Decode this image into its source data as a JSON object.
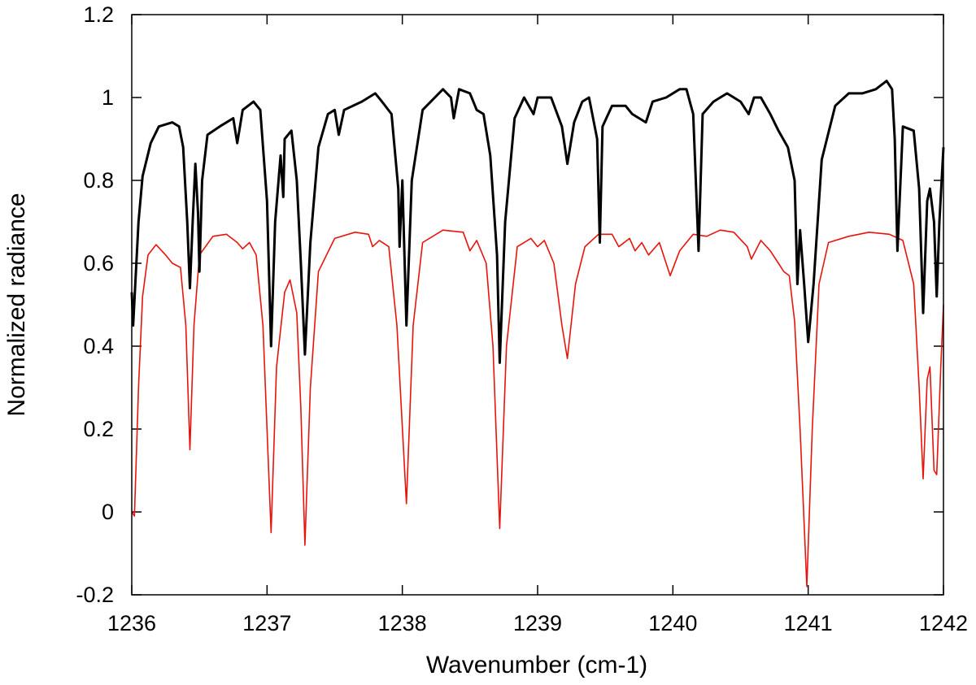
{
  "chart_data": {
    "type": "line",
    "xlabel": "Wavenumber (cm-1)",
    "ylabel": "Normalized radiance",
    "xlim": [
      1236,
      1242
    ],
    "xticks": [
      1236,
      1237,
      1238,
      1239,
      1240,
      1241,
      1242
    ],
    "ylim": [
      -0.2,
      1.2
    ],
    "yticks": [
      -0.2,
      0,
      0.2,
      0.4,
      0.6,
      0.8,
      1,
      1.2
    ],
    "series": [
      {
        "color": "#000000",
        "x": [
          1236.0,
          1236.01,
          1236.05,
          1236.08,
          1236.14,
          1236.2,
          1236.3,
          1236.35,
          1236.38,
          1236.41,
          1236.43,
          1236.45,
          1236.47,
          1236.49,
          1236.5,
          1236.52,
          1236.56,
          1236.65,
          1236.75,
          1236.78,
          1236.82,
          1236.9,
          1236.95,
          1237.0,
          1237.03,
          1237.06,
          1237.1,
          1237.12,
          1237.13,
          1237.18,
          1237.22,
          1237.25,
          1237.28,
          1237.32,
          1237.38,
          1237.45,
          1237.5,
          1237.53,
          1237.57,
          1237.7,
          1237.8,
          1237.85,
          1237.92,
          1237.97,
          1237.98,
          1238.0,
          1238.03,
          1238.07,
          1238.15,
          1238.3,
          1238.36,
          1238.38,
          1238.42,
          1238.5,
          1238.55,
          1238.6,
          1238.65,
          1238.7,
          1238.72,
          1238.76,
          1238.83,
          1238.9,
          1238.97,
          1239.0,
          1239.1,
          1239.18,
          1239.22,
          1239.27,
          1239.33,
          1239.38,
          1239.44,
          1239.46,
          1239.48,
          1239.55,
          1239.65,
          1239.7,
          1239.8,
          1239.85,
          1239.95,
          1240.05,
          1240.1,
          1240.15,
          1240.19,
          1240.22,
          1240.3,
          1240.4,
          1240.5,
          1240.56,
          1240.6,
          1240.65,
          1240.72,
          1240.78,
          1240.85,
          1240.9,
          1240.92,
          1240.94,
          1240.97,
          1241.0,
          1241.04,
          1241.1,
          1241.2,
          1241.3,
          1241.4,
          1241.5,
          1241.58,
          1241.62,
          1241.64,
          1241.66,
          1241.7,
          1241.78,
          1241.82,
          1241.85,
          1241.88,
          1241.9,
          1241.93,
          1241.95,
          1241.97,
          1242.0
        ],
        "values": [
          0.53,
          0.45,
          0.7,
          0.81,
          0.89,
          0.93,
          0.94,
          0.93,
          0.88,
          0.7,
          0.54,
          0.7,
          0.84,
          0.72,
          0.58,
          0.8,
          0.91,
          0.93,
          0.95,
          0.89,
          0.97,
          0.99,
          0.97,
          0.75,
          0.4,
          0.7,
          0.86,
          0.76,
          0.9,
          0.92,
          0.8,
          0.6,
          0.38,
          0.65,
          0.88,
          0.96,
          0.97,
          0.91,
          0.97,
          0.99,
          1.01,
          0.99,
          0.96,
          0.78,
          0.64,
          0.8,
          0.45,
          0.8,
          0.97,
          1.02,
          1.0,
          0.95,
          1.02,
          1.01,
          0.97,
          0.96,
          0.86,
          0.62,
          0.36,
          0.7,
          0.95,
          1.0,
          0.96,
          1.0,
          1.0,
          0.93,
          0.84,
          0.94,
          0.99,
          1.0,
          0.9,
          0.65,
          0.93,
          0.98,
          0.98,
          0.96,
          0.94,
          0.99,
          1.0,
          1.02,
          1.02,
          0.96,
          0.63,
          0.96,
          0.99,
          1.01,
          0.99,
          0.96,
          1.0,
          1.0,
          0.96,
          0.92,
          0.88,
          0.8,
          0.55,
          0.68,
          0.55,
          0.41,
          0.55,
          0.85,
          0.98,
          1.01,
          1.01,
          1.02,
          1.04,
          1.02,
          0.9,
          0.63,
          0.93,
          0.92,
          0.78,
          0.48,
          0.75,
          0.78,
          0.7,
          0.52,
          0.7,
          0.88
        ]
      },
      {
        "color": "#e8140c",
        "x": [
          1236.0,
          1236.02,
          1236.05,
          1236.08,
          1236.12,
          1236.18,
          1236.25,
          1236.3,
          1236.36,
          1236.4,
          1236.43,
          1236.46,
          1236.5,
          1236.6,
          1236.7,
          1236.78,
          1236.82,
          1236.87,
          1236.92,
          1236.97,
          1237.03,
          1237.07,
          1237.13,
          1237.17,
          1237.22,
          1237.25,
          1237.28,
          1237.32,
          1237.38,
          1237.5,
          1237.65,
          1237.75,
          1237.78,
          1237.83,
          1237.9,
          1237.96,
          1238.03,
          1238.08,
          1238.15,
          1238.3,
          1238.45,
          1238.5,
          1238.55,
          1238.62,
          1238.67,
          1238.72,
          1238.77,
          1238.85,
          1238.95,
          1239.0,
          1239.05,
          1239.12,
          1239.18,
          1239.22,
          1239.28,
          1239.35,
          1239.45,
          1239.55,
          1239.6,
          1239.68,
          1239.72,
          1239.77,
          1239.82,
          1239.9,
          1239.98,
          1240.05,
          1240.15,
          1240.25,
          1240.35,
          1240.45,
          1240.55,
          1240.58,
          1240.65,
          1240.72,
          1240.78,
          1240.82,
          1240.86,
          1240.9,
          1240.94,
          1240.99,
          1241.03,
          1241.08,
          1241.15,
          1241.3,
          1241.45,
          1241.6,
          1241.7,
          1241.78,
          1241.82,
          1241.85,
          1241.88,
          1241.9,
          1241.93,
          1241.95,
          1241.98,
          1242.0
        ],
        "values": [
          0.0,
          -0.01,
          0.3,
          0.52,
          0.62,
          0.645,
          0.62,
          0.6,
          0.59,
          0.45,
          0.15,
          0.45,
          0.62,
          0.665,
          0.67,
          0.65,
          0.635,
          0.65,
          0.62,
          0.45,
          -0.05,
          0.35,
          0.53,
          0.56,
          0.48,
          0.25,
          -0.08,
          0.3,
          0.58,
          0.66,
          0.675,
          0.67,
          0.64,
          0.655,
          0.64,
          0.45,
          0.02,
          0.45,
          0.65,
          0.68,
          0.675,
          0.63,
          0.655,
          0.6,
          0.4,
          -0.04,
          0.4,
          0.64,
          0.66,
          0.64,
          0.655,
          0.6,
          0.45,
          0.37,
          0.55,
          0.64,
          0.67,
          0.67,
          0.64,
          0.66,
          0.63,
          0.65,
          0.62,
          0.65,
          0.57,
          0.63,
          0.67,
          0.665,
          0.68,
          0.675,
          0.64,
          0.61,
          0.655,
          0.63,
          0.6,
          0.58,
          0.57,
          0.46,
          0.2,
          -0.18,
          0.2,
          0.55,
          0.65,
          0.665,
          0.675,
          0.67,
          0.655,
          0.55,
          0.3,
          0.08,
          0.32,
          0.35,
          0.1,
          0.09,
          0.35,
          0.5
        ]
      }
    ]
  }
}
